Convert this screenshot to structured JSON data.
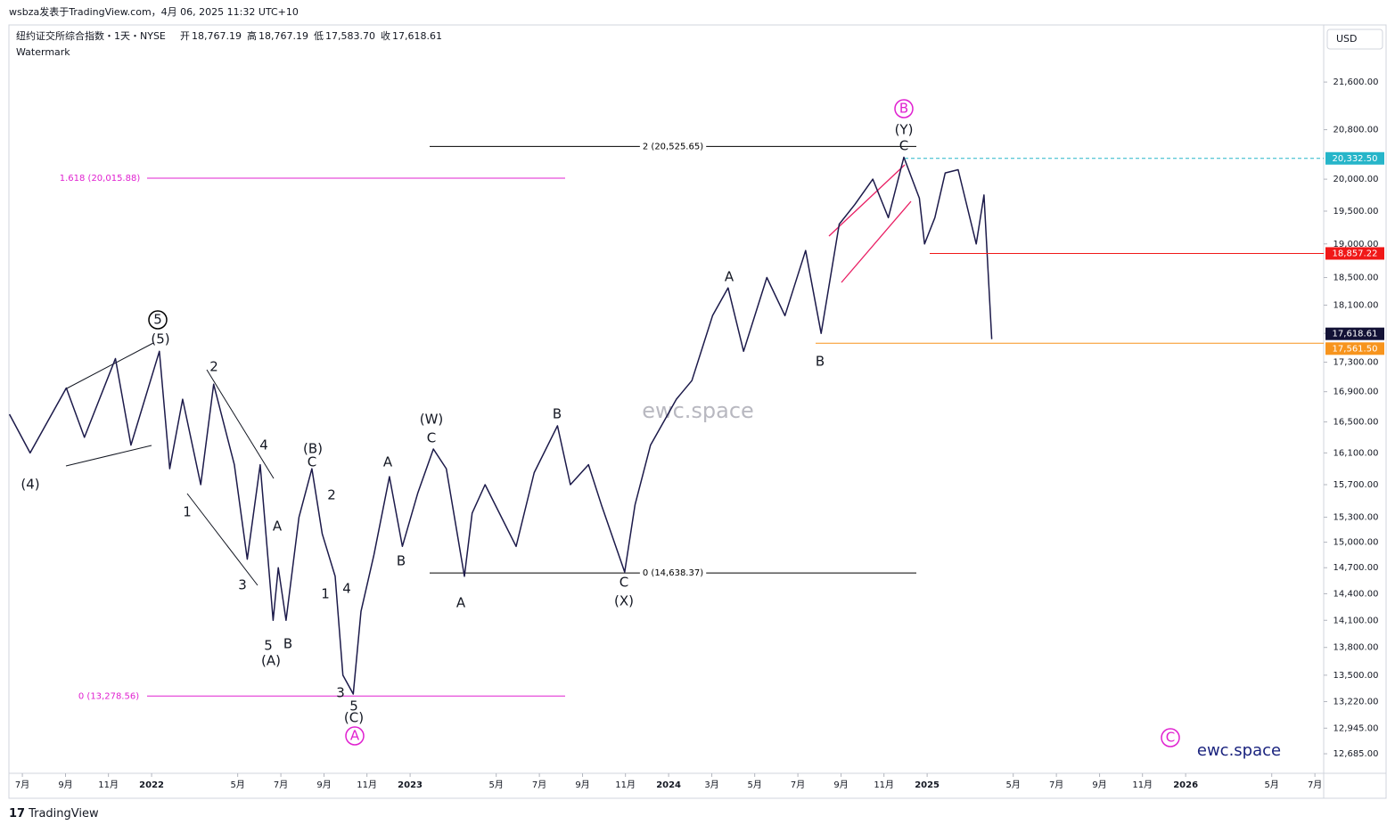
{
  "header": {
    "byline": "wsbza发表于TradingView.com，4月 06, 2025 11:32 UTC+10",
    "symbol": "纽约证交所综合指数・1天・NYSE",
    "ohlc": [
      {
        "key": "开",
        "text": "18,767.19"
      },
      {
        "key": "高",
        "text": "18,767.19"
      },
      {
        "key": "低",
        "text": "17,583.70"
      },
      {
        "key": "收",
        "text": "17,618.61"
      }
    ],
    "watermark_note": "Watermark",
    "currency": "USD"
  },
  "footer": {
    "brand": "TradingView"
  },
  "chart_data": {
    "type": "line",
    "log_scale": true,
    "watermark": "ewc.space",
    "brand_label": "ewc.space",
    "series": [
      {
        "name": "NYSE",
        "color": "#1c1a4a",
        "x": [
          2021.45,
          2021.53,
          2021.67,
          2021.74,
          2021.86,
          2021.92,
          2022.03,
          2022.07,
          2022.12,
          2022.19,
          2022.24,
          2022.32,
          2022.37,
          2022.42,
          2022.47,
          2022.49,
          2022.52,
          2022.57,
          2022.62,
          2022.66,
          2022.71,
          2022.74,
          2022.78,
          2022.81,
          2022.86,
          2022.92,
          2022.97,
          2023.03,
          2023.09,
          2023.14,
          2023.21,
          2023.24,
          2023.29,
          2023.41,
          2023.48,
          2023.57,
          2023.62,
          2023.69,
          2023.74,
          2023.83,
          2023.87,
          2023.93,
          2024.03,
          2024.09,
          2024.17,
          2024.23,
          2024.29,
          2024.38,
          2024.45,
          2024.53,
          2024.59,
          2024.66,
          2024.72,
          2024.79,
          2024.85,
          2024.91,
          2024.97,
          2024.99,
          2025.03,
          2025.07,
          2025.12,
          2025.19,
          2025.22,
          2025.25
        ],
        "values": [
          16600,
          16100,
          16950,
          16300,
          17350,
          16200,
          17450,
          15900,
          16800,
          15700,
          17000,
          15950,
          14800,
          15950,
          14100,
          14700,
          14100,
          15300,
          15900,
          15100,
          14600,
          13500,
          13300,
          14200,
          14850,
          15800,
          14950,
          15600,
          16150,
          15900,
          14600,
          15350,
          15700,
          14950,
          15850,
          16450,
          15700,
          15950,
          15450,
          14650,
          15450,
          16200,
          16800,
          17050,
          17950,
          18350,
          17450,
          18500,
          17950,
          18900,
          17700,
          19300,
          19600,
          20000,
          19400,
          20350,
          19700,
          19000,
          19400,
          20100,
          20150,
          19000,
          19750,
          17618.61
        ]
      }
    ],
    "xlim": [
      2021.448,
      2026.534
    ],
    "ylim": [
      12490,
      22600
    ],
    "xticks": [
      {
        "value": 2021.5,
        "label": "7月"
      },
      {
        "value": 2021.667,
        "label": "9月"
      },
      {
        "value": 2021.833,
        "label": "11月"
      },
      2022,
      {
        "value": 2022.333,
        "label": "5月"
      },
      {
        "value": 2022.5,
        "label": "7月"
      },
      {
        "value": 2022.667,
        "label": "9月"
      },
      {
        "value": 2022.833,
        "label": "11月"
      },
      2023,
      {
        "value": 2023.333,
        "label": "5月"
      },
      {
        "value": 2023.5,
        "label": "7月"
      },
      {
        "value": 2023.667,
        "label": "9月"
      },
      {
        "value": 2023.833,
        "label": "11月"
      },
      2024,
      {
        "value": 2024.167,
        "label": "3月"
      },
      {
        "value": 2024.333,
        "label": "5月"
      },
      {
        "value": 2024.5,
        "label": "7月"
      },
      {
        "value": 2024.667,
        "label": "9月"
      },
      {
        "value": 2024.833,
        "label": "11月"
      },
      2025,
      {
        "value": 2025.333,
        "label": "5月"
      },
      {
        "value": 2025.5,
        "label": "7月"
      },
      {
        "value": 2025.667,
        "label": "9月"
      },
      {
        "value": 2025.833,
        "label": "11月"
      },
      2026,
      {
        "value": 2026.333,
        "label": "5月"
      },
      {
        "value": 2026.5,
        "label": "7月"
      }
    ],
    "yticks": [
      {
        "value": 21600,
        "label": "21,600.00"
      },
      {
        "value": 20800,
        "label": "20,800.00"
      },
      {
        "value": 20000,
        "label": "20,000.00"
      },
      {
        "value": 19500,
        "label": "19,500.00"
      },
      {
        "value": 19000,
        "label": "19,000.00"
      },
      {
        "value": 18500,
        "label": "18,500.00"
      },
      {
        "value": 18100,
        "label": "18,100.00"
      },
      {
        "value": 17700,
        "label": "17,700.00"
      },
      {
        "value": 17300,
        "label": "17,300.00"
      },
      {
        "value": 16900,
        "label": "16,900.00"
      },
      {
        "value": 16500,
        "label": "16,500.00"
      },
      {
        "value": 16100,
        "label": "16,100.00"
      },
      {
        "value": 15700,
        "label": "15,700.00"
      },
      {
        "value": 15300,
        "label": "15,300.00"
      },
      {
        "value": 15000,
        "label": "15,000.00"
      },
      {
        "value": 14700,
        "label": "14,700.00"
      },
      {
        "value": 14400,
        "label": "14,400.00"
      },
      {
        "value": 14100,
        "label": "14,100.00"
      },
      {
        "value": 13800,
        "label": "13,800.00"
      },
      {
        "value": 13500,
        "label": "13,500.00"
      },
      {
        "value": 13220,
        "label": "13,220.00"
      },
      {
        "value": 12945,
        "label": "12,945.00"
      },
      {
        "value": 12685,
        "label": "12,685.00"
      }
    ],
    "fib_levels": [
      {
        "value": 20525.65,
        "label": "2 (20,525.65)",
        "color": "#000000"
      },
      {
        "value": 14638.37,
        "label": "0 (14,638.37)",
        "color": "#000000"
      },
      {
        "value": 20015.88,
        "label": "1.618 (20,015.88)",
        "color": "#e020d0"
      },
      {
        "value": 13278.56,
        "label": "0 (13,278.56)",
        "color": "#e020d0"
      }
    ],
    "price_lines": [
      {
        "value": 20332.5,
        "label": "20,332.50",
        "color": "#26b5c9"
      },
      {
        "value": 18857.22,
        "label": "18,857.22",
        "color": "#f01818"
      },
      {
        "value": 17618.61,
        "label": "17,618.61",
        "color": "#131236"
      },
      {
        "value": 17561.5,
        "label": "17,561.50",
        "color": "#f7941d"
      }
    ],
    "wave_labels": [
      "(4)",
      "5",
      "(5)",
      "2",
      "4",
      "1",
      "3",
      "A",
      "5",
      "(A)",
      "B",
      "(B)",
      "C",
      "2",
      "1",
      "4",
      "3",
      "5",
      "(C)",
      "A",
      "A",
      "B",
      "(W)",
      "C",
      "A",
      "B",
      "C",
      "(X)",
      "A",
      "B",
      "B",
      "(Y)",
      "C",
      "C"
    ]
  }
}
